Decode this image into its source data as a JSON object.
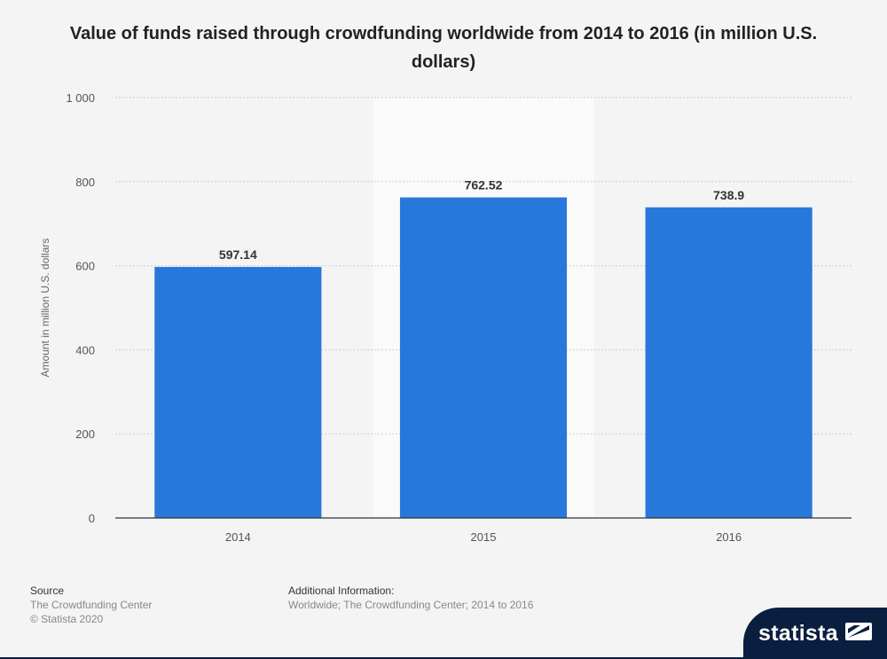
{
  "chart_data": {
    "type": "bar",
    "title": "Value of funds raised through crowdfunding worldwide from 2014 to 2016 (in million U.S. dollars)",
    "categories": [
      "2014",
      "2015",
      "2016"
    ],
    "values": [
      597.14,
      762.52,
      738.9
    ],
    "value_labels": [
      "597.14",
      "762.52",
      "738.9"
    ],
    "xlabel": "",
    "ylabel": "Amount in million U.S. dollars",
    "ylim": [
      0,
      1000
    ],
    "yticks": [
      0,
      200,
      400,
      600,
      800,
      1000
    ],
    "ytick_labels": [
      "0",
      "200",
      "400",
      "600",
      "800",
      "1 000"
    ],
    "highlight_category": "2015",
    "bar_color": "#2878dc",
    "grid": true
  },
  "footer": {
    "source_heading": "Source",
    "source_name": "The Crowdfunding Center",
    "copyright": "© Statista 2020",
    "info_heading": "Additional Information:",
    "info_text": "Worldwide; The Crowdfunding Center; 2014 to 2016"
  },
  "brand": {
    "name": "statista",
    "color": "#0a1e3f"
  }
}
